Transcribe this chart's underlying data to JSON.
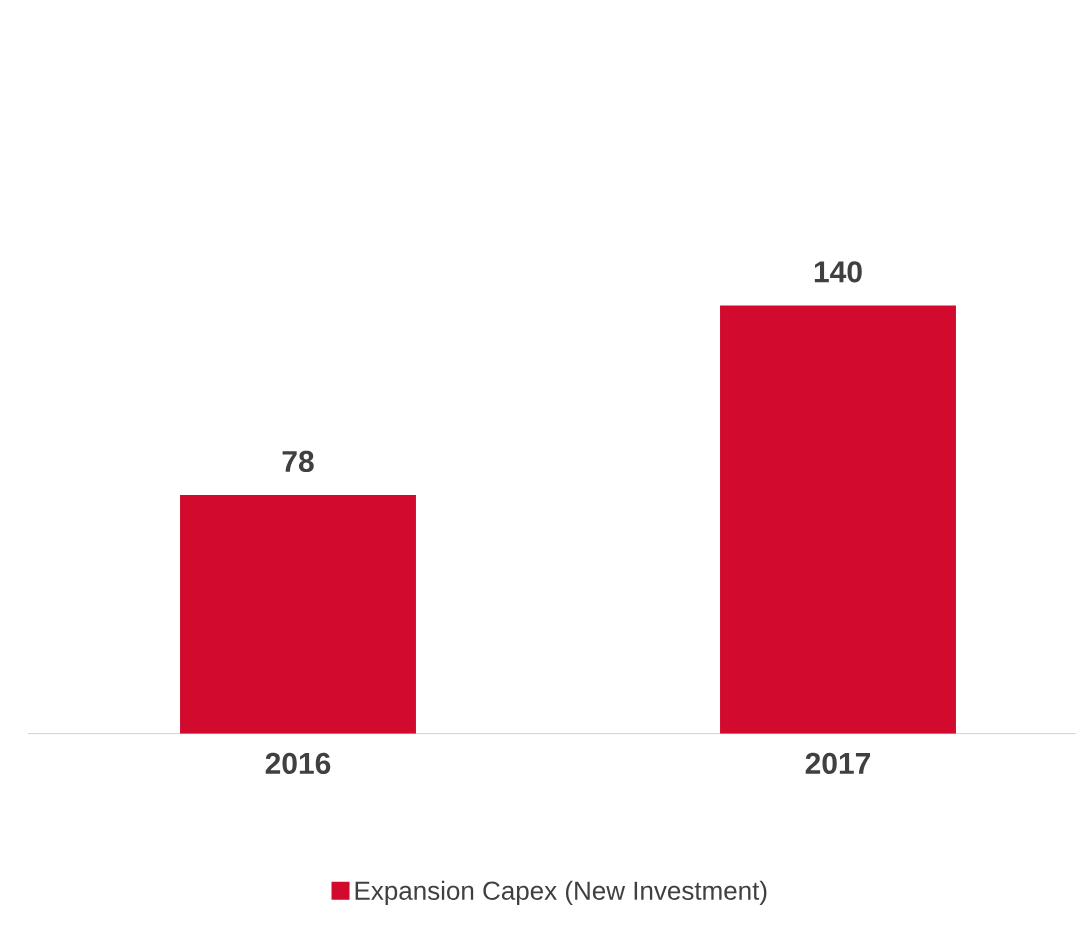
{
  "chart_data": {
    "type": "bar",
    "categories": [
      "2016",
      "2017"
    ],
    "series": [
      {
        "name": "Expansion Capex (New Investment)",
        "color": "#d10a2e",
        "values": [
          78,
          140
        ]
      }
    ],
    "data_labels": true,
    "legend": "bottom",
    "grid": false
  }
}
